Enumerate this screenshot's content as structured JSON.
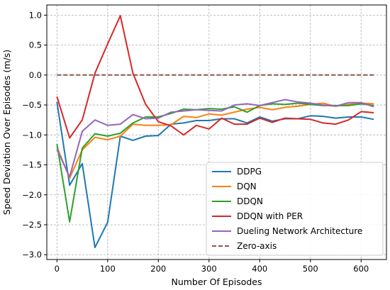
{
  "chart_data": {
    "type": "line",
    "title": "",
    "xlabel": "Number Of Episodes",
    "ylabel": "Speed Deviation Over Episodes (m/s)",
    "xlim": [
      -20,
      650
    ],
    "ylim": [
      -3.08,
      1.17
    ],
    "xticks": [
      0,
      100,
      200,
      300,
      400,
      500,
      600
    ],
    "yticks": [
      1.0,
      0.5,
      0.0,
      -0.5,
      -1.0,
      -1.5,
      -2.0,
      -2.5,
      -3.0
    ],
    "xtick_labels": [
      "0",
      "100",
      "200",
      "300",
      "400",
      "500",
      "600"
    ],
    "ytick_labels": [
      "1.0",
      "0.5",
      "0.0",
      "−0.5",
      "−1.0",
      "−1.5",
      "−2.0",
      "−2.5",
      "−3.0"
    ],
    "grid": true,
    "legend_position": "lower right",
    "x": [
      0,
      25,
      50,
      75,
      100,
      125,
      150,
      175,
      200,
      225,
      250,
      275,
      300,
      325,
      350,
      375,
      400,
      425,
      450,
      475,
      500,
      525,
      550,
      575,
      600,
      625
    ],
    "series": [
      {
        "name": "DDPG",
        "color": "#1f77b4",
        "dashed": false,
        "values": [
          -0.45,
          -1.84,
          -1.48,
          -2.88,
          -2.46,
          -1.02,
          -1.09,
          -1.02,
          -1.01,
          -0.82,
          -0.8,
          -0.76,
          -0.76,
          -0.73,
          -0.73,
          -0.8,
          -0.7,
          -0.77,
          -0.73,
          -0.73,
          -0.68,
          -0.69,
          -0.72,
          -0.7,
          -0.7,
          -0.74
        ]
      },
      {
        "name": "DQN",
        "color": "#ff7f0e",
        "dashed": false,
        "values": [
          -1.2,
          -1.72,
          -1.25,
          -1.04,
          -1.08,
          -1.02,
          -0.82,
          -0.84,
          -0.84,
          -0.83,
          -0.69,
          -0.71,
          -0.65,
          -0.67,
          -0.62,
          -0.57,
          -0.54,
          -0.58,
          -0.54,
          -0.52,
          -0.49,
          -0.47,
          -0.52,
          -0.49,
          -0.47,
          -0.48
        ]
      },
      {
        "name": "DDQN",
        "color": "#2ca02c",
        "dashed": false,
        "values": [
          -1.15,
          -2.45,
          -1.22,
          -0.98,
          -1.02,
          -0.97,
          -0.8,
          -0.7,
          -0.7,
          -0.64,
          -0.57,
          -0.58,
          -0.56,
          -0.57,
          -0.53,
          -0.62,
          -0.51,
          -0.48,
          -0.49,
          -0.47,
          -0.49,
          -0.51,
          -0.51,
          -0.51,
          -0.48,
          -0.51
        ]
      },
      {
        "name": "DDQN with PER",
        "color": "#d62728",
        "dashed": false,
        "values": [
          -0.36,
          -1.05,
          -0.75,
          0.03,
          0.52,
          0.99,
          0.03,
          -0.49,
          -0.78,
          -0.85,
          -1.0,
          -0.84,
          -0.9,
          -0.72,
          -0.82,
          -0.82,
          -0.72,
          -0.79,
          -0.72,
          -0.73,
          -0.74,
          -0.8,
          -0.82,
          -0.75,
          -0.61,
          -0.63
        ]
      },
      {
        "name": "Dueling Network Architecture",
        "color": "#9467bd",
        "dashed": false,
        "values": [
          -1.24,
          -1.7,
          -0.94,
          -0.75,
          -0.84,
          -0.82,
          -0.66,
          -0.73,
          -0.72,
          -0.62,
          -0.6,
          -0.58,
          -0.59,
          -0.6,
          -0.5,
          -0.48,
          -0.51,
          -0.46,
          -0.41,
          -0.45,
          -0.47,
          -0.5,
          -0.52,
          -0.46,
          -0.46,
          -0.53
        ]
      },
      {
        "name": "Zero-axis",
        "color": "#8c564b",
        "dashed": true,
        "values": [
          0,
          0,
          0,
          0,
          0,
          0,
          0,
          0,
          0,
          0,
          0,
          0,
          0,
          0,
          0,
          0,
          0,
          0,
          0,
          0,
          0,
          0,
          0,
          0,
          0,
          0
        ]
      }
    ]
  }
}
